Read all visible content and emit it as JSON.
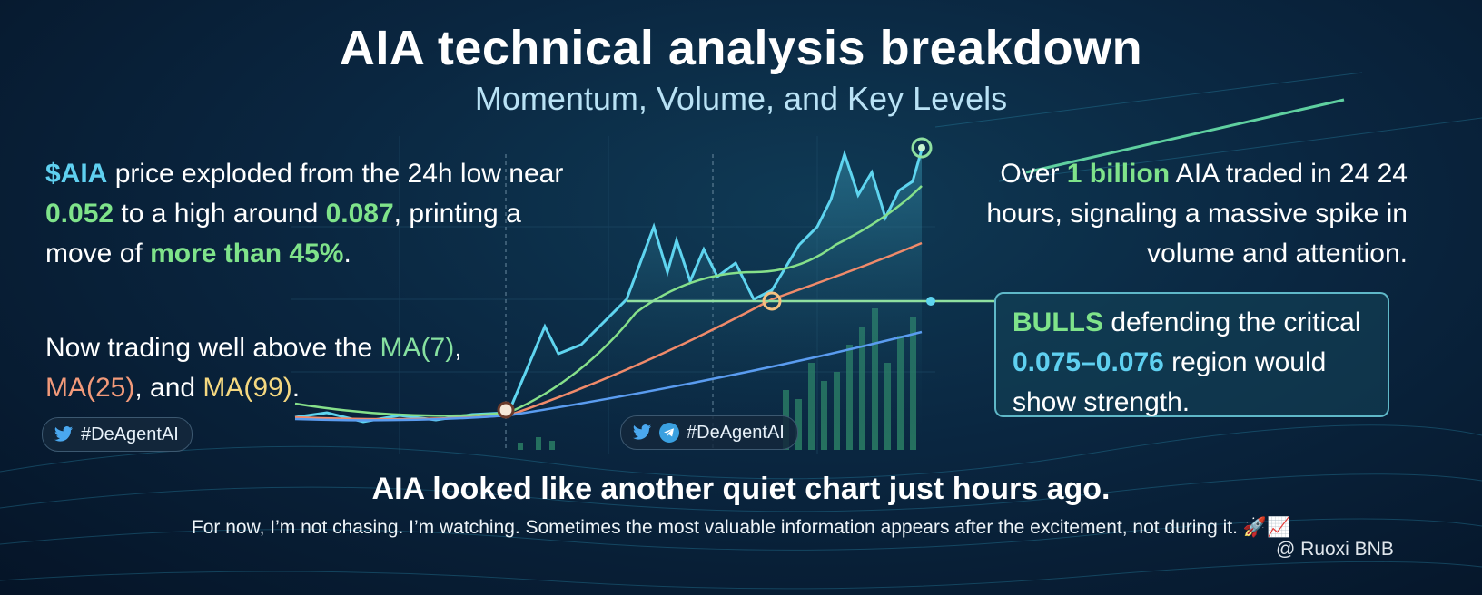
{
  "title": "AIA technical analysis breakdown",
  "subtitle": "Momentum, Volume, and Key Levels",
  "left_top": [
    "$AIA",
    " price exploded from the 24h low near ",
    "0.052",
    " to a high around ",
    "0.087",
    ", printing a move of ",
    "more than 45%",
    "."
  ],
  "left_bottom": [
    "Now trading well above the ",
    "MA(7)",
    ", ",
    "MA(25)",
    ", and ",
    "MA(99)",
    "."
  ],
  "right_top": [
    "Over ",
    "1 billion",
    " AIA traded in 24 24 hours, signaling a massive spike in volume and attention."
  ],
  "right_box": [
    "BULLS",
    " defending the critical ",
    "0.075–0.076",
    " region would show strength."
  ],
  "hashtag_left": "#DeAgentAI",
  "hashtag_center": "#DeAgentAI",
  "headline": "AIA looked like another quiet chart just hours ago.",
  "footer": "For now, I’m not chasing. I’m watching. Sometimes the most valuable information appears after the excitement, not during it. 🚀📈",
  "watermark": "@ Ruoxi BNB"
}
